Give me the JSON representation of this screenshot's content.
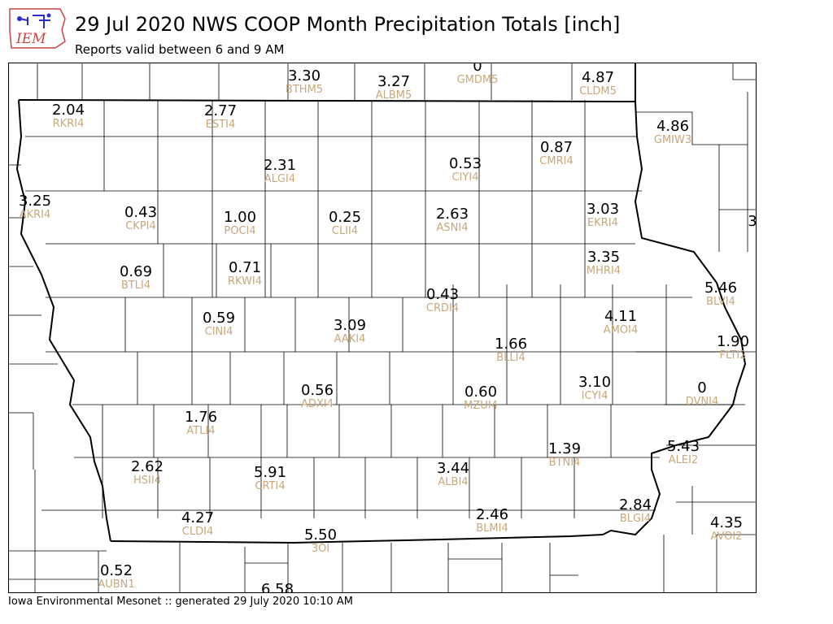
{
  "header": {
    "logo_text": "IEM",
    "title": "29 Jul 2020 NWS COOP Month Precipitation Totals [inch]",
    "subtitle": "Reports valid between 6 and 9 AM"
  },
  "footer": {
    "text": "Iowa Environmental Mesonet :: generated 29 July 2020 10:10 AM"
  },
  "map": {
    "stations": [
      {
        "value": "3.30",
        "id": "BTHM5"
      },
      {
        "value": "3.27",
        "id": "ALBM5"
      },
      {
        "value": "0",
        "id": "GMDM5"
      },
      {
        "value": "4.87",
        "id": "CLDM5"
      },
      {
        "value": "2.04",
        "id": "RKRI4"
      },
      {
        "value": "2.77",
        "id": "ESTI4"
      },
      {
        "value": "4.86",
        "id": "GMIW3"
      },
      {
        "value": "0.87",
        "id": "CMRI4"
      },
      {
        "value": "2.31",
        "id": "ALGI4"
      },
      {
        "value": "0.53",
        "id": "CIYI4"
      },
      {
        "value": "3.25",
        "id": "AKRI4"
      },
      {
        "value": "0.43",
        "id": "CKPI4"
      },
      {
        "value": "1.00",
        "id": "POCI4"
      },
      {
        "value": "0.25",
        "id": "CLII4"
      },
      {
        "value": "2.63",
        "id": "ASNI4"
      },
      {
        "value": "3.03",
        "id": "EKRI4"
      },
      {
        "value": "3",
        "id": ""
      },
      {
        "value": "0.69",
        "id": "BTLI4"
      },
      {
        "value": "0.71",
        "id": "RKWI4"
      },
      {
        "value": "3.35",
        "id": "MHRI4"
      },
      {
        "value": "5.46",
        "id": "BLVI4"
      },
      {
        "value": "0.43",
        "id": "CRDI4"
      },
      {
        "value": "0.59",
        "id": "CINI4"
      },
      {
        "value": "3.09",
        "id": "AAKI4"
      },
      {
        "value": "4.11",
        "id": "AMOI4"
      },
      {
        "value": "1.90",
        "id": "FLTI2"
      },
      {
        "value": "1.66",
        "id": "BLLI4"
      },
      {
        "value": "3.10",
        "id": "ICYI4"
      },
      {
        "value": "0",
        "id": "DVNI4"
      },
      {
        "value": "0.56",
        "id": "ADXI4"
      },
      {
        "value": "0.60",
        "id": "MZUI4"
      },
      {
        "value": "1.76",
        "id": "ATLI4"
      },
      {
        "value": "1.39",
        "id": "BTNI4"
      },
      {
        "value": "5.43",
        "id": "ALEI2"
      },
      {
        "value": "2.62",
        "id": "HSII4"
      },
      {
        "value": "5.91",
        "id": "CRTI4"
      },
      {
        "value": "3.44",
        "id": "ALBI4"
      },
      {
        "value": "4.27",
        "id": "CLDI4"
      },
      {
        "value": "2.46",
        "id": "BLMI4"
      },
      {
        "value": "2.84",
        "id": "BLGI4"
      },
      {
        "value": "4.35",
        "id": "AVOI2"
      },
      {
        "value": "5.50",
        "id": "3OI"
      },
      {
        "value": "0.52",
        "id": "AUBN1"
      },
      {
        "value": "6.58",
        "id": ""
      }
    ]
  }
}
